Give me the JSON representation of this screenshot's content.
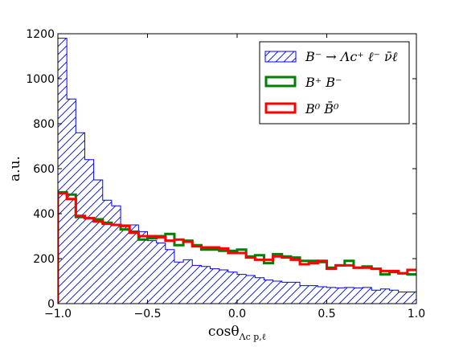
{
  "chart_data": {
    "type": "histogram",
    "xlabel_main": "cosθ",
    "xlabel_sub": "Λc p,ℓ",
    "ylabel": "a.u.",
    "xlim": [
      -1.0,
      1.0
    ],
    "ylim": [
      0,
      1200
    ],
    "x_ticks": [
      -1.0,
      -0.5,
      0.0,
      0.5,
      1.0
    ],
    "x_tick_labels": [
      "−1.0",
      "−0.5",
      "0.0",
      "0.5",
      "1.0"
    ],
    "y_ticks": [
      0,
      200,
      400,
      600,
      800,
      1000,
      1200
    ],
    "y_tick_labels": [
      "0",
      "200",
      "400",
      "600",
      "800",
      "1000",
      "1200"
    ],
    "bin_edges": [
      -1.0,
      -0.95,
      -0.9,
      -0.85,
      -0.8,
      -0.75,
      -0.7,
      -0.65,
      -0.6,
      -0.55,
      -0.5,
      -0.45,
      -0.4,
      -0.35,
      -0.3,
      -0.25,
      -0.2,
      -0.15,
      -0.1,
      -0.05,
      0.0,
      0.05,
      0.1,
      0.15,
      0.2,
      0.25,
      0.3,
      0.35,
      0.4,
      0.45,
      0.5,
      0.55,
      0.6,
      0.65,
      0.7,
      0.75,
      0.8,
      0.85,
      0.9,
      0.95,
      1.0
    ],
    "legend_position": "top-right",
    "grid": false,
    "series": [
      {
        "name": "B⁻ → Λc⁺ ℓ⁻ ν̄ℓ",
        "style": "hatched",
        "color": "#0000ff",
        "values": [
          1180,
          910,
          760,
          640,
          550,
          460,
          435,
          350,
          350,
          320,
          280,
          270,
          240,
          185,
          195,
          170,
          165,
          155,
          150,
          140,
          130,
          125,
          115,
          105,
          100,
          95,
          95,
          80,
          80,
          75,
          72,
          70,
          72,
          70,
          72,
          60,
          65,
          60,
          52,
          52
        ]
      },
      {
        "name": "B⁺ B⁻",
        "style": "step",
        "color": "#008000",
        "values": [
          495,
          485,
          385,
          380,
          375,
          360,
          350,
          330,
          320,
          285,
          290,
          300,
          310,
          260,
          280,
          260,
          240,
          240,
          235,
          235,
          240,
          210,
          215,
          180,
          220,
          210,
          205,
          190,
          190,
          185,
          160,
          170,
          190,
          160,
          165,
          155,
          130,
          140,
          135,
          130
        ]
      },
      {
        "name": "B⁰ B̄⁰",
        "style": "step",
        "color": "#ff0000",
        "values": [
          490,
          465,
          390,
          380,
          365,
          355,
          350,
          345,
          315,
          300,
          300,
          295,
          280,
          285,
          275,
          255,
          250,
          250,
          245,
          225,
          225,
          205,
          195,
          195,
          210,
          205,
          195,
          175,
          180,
          190,
          155,
          170,
          170,
          160,
          160,
          155,
          145,
          145,
          135,
          150
        ]
      }
    ]
  }
}
